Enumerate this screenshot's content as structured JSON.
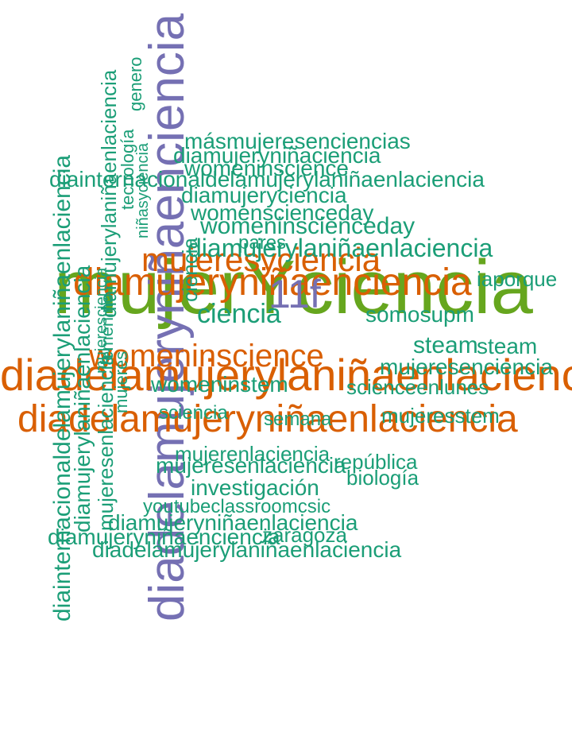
{
  "colors": {
    "teal": "#1b9e77",
    "orange": "#d95f02",
    "purple": "#7570b3",
    "green": "#66a61e"
  },
  "words": [
    {
      "text": "mujerYciencia",
      "color": "green"
    },
    {
      "text": "diadelamujeryniñaenciencia",
      "color": "purple"
    },
    {
      "text": "diadelamujerylaniñaenlaciencia",
      "color": "orange"
    },
    {
      "text": "diadelamujeryniñaenlaciencia",
      "color": "orange"
    },
    {
      "text": "diamujeryniñaenciencia",
      "color": "orange"
    },
    {
      "text": "womeninscience",
      "color": "orange"
    },
    {
      "text": "mujeresyciencia",
      "color": "orange"
    },
    {
      "text": "11f",
      "color": "purple"
    },
    {
      "text": "ciencia",
      "color": "teal"
    },
    {
      "text": "diainternacionaldelamujerylaniñaenlaciencia",
      "color": "teal"
    },
    {
      "text": "diamujerylaniñaenlaciencia",
      "color": "teal"
    },
    {
      "text": "diamujerylaniñaenlaciencia",
      "color": "teal"
    },
    {
      "text": "másmujeresenciencias",
      "color": "teal"
    },
    {
      "text": "diamujeryniñaciencia",
      "color": "teal"
    },
    {
      "text": "womeninscience",
      "color": "teal"
    },
    {
      "text": "diainternacionaldelamujerylaniñaenlaciencia",
      "color": "teal"
    },
    {
      "text": "diamujeryciencia",
      "color": "teal"
    },
    {
      "text": "womenscienceday",
      "color": "teal"
    },
    {
      "text": "womeninscienceday",
      "color": "teal"
    },
    {
      "text": "diamujerylaniñaenlaciencia",
      "color": "teal"
    },
    {
      "text": "mujeresenlaciencia",
      "color": "teal"
    },
    {
      "text": "sciencia",
      "color": "teal"
    },
    {
      "text": "somosupm",
      "color": "teal"
    },
    {
      "text": "steam",
      "color": "teal"
    },
    {
      "text": "mujeresenciencia",
      "color": "teal"
    },
    {
      "text": "womeninstem",
      "color": "teal"
    },
    {
      "text": "scienceenlunes",
      "color": "teal"
    },
    {
      "text": "mujeresstem",
      "color": "teal"
    },
    {
      "text": "mujeresenlaciencia",
      "color": "teal"
    },
    {
      "text": "república",
      "color": "teal"
    },
    {
      "text": "biología",
      "color": "teal"
    },
    {
      "text": "investigación",
      "color": "teal"
    },
    {
      "text": "youtubeclassroomcsic",
      "color": "teal"
    },
    {
      "text": "diamujeryniñaenlaciencia",
      "color": "teal"
    },
    {
      "text": "diamujeryniñaenciencia",
      "color": "teal"
    },
    {
      "text": "zaragoza",
      "color": "teal"
    },
    {
      "text": "mujerenlaciencia",
      "color": "teal"
    },
    {
      "text": "diadelamujerylaniñaenlaciencia",
      "color": "teal"
    },
    {
      "text": "steam",
      "color": "teal"
    },
    {
      "text": "iaporque",
      "color": "teal"
    },
    {
      "text": "pares",
      "color": "teal"
    },
    {
      "text": "femenino",
      "color": "teal"
    },
    {
      "text": "mujeres",
      "color": "teal"
    },
    {
      "text": "semana",
      "color": "teal"
    },
    {
      "text": "tecnología",
      "color": "teal"
    },
    {
      "text": "genero",
      "color": "teal"
    },
    {
      "text": "ciencia",
      "color": "teal"
    },
    {
      "text": "mujeresciencia",
      "color": "teal"
    },
    {
      "text": "niñasyciencia",
      "color": "teal"
    }
  ]
}
